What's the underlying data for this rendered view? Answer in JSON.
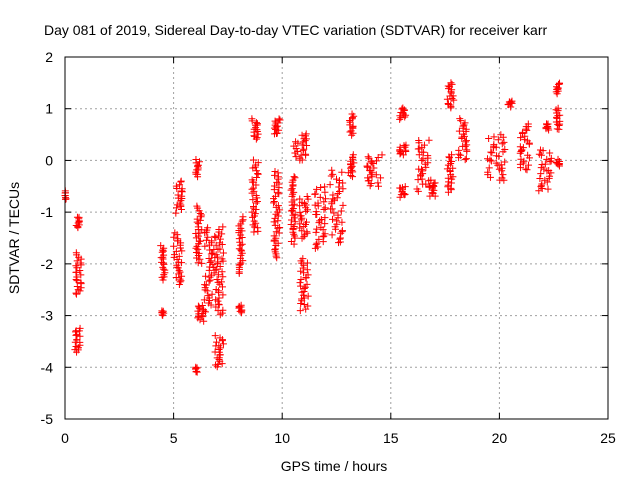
{
  "chart_data": {
    "type": "scatter",
    "title": "Day 081 of 2019, Sidereal Day-to-day VTEC variation (SDTVAR) for receiver karr",
    "xlabel": "GPS time / hours",
    "ylabel": "SDTVAR / TECUs",
    "xlim": [
      0,
      25
    ],
    "ylim": [
      -5,
      2
    ],
    "xticks": [
      0,
      5,
      10,
      15,
      20,
      25
    ],
    "yticks": [
      -5,
      -4,
      -3,
      -2,
      -1,
      0,
      1,
      2
    ],
    "grid": true,
    "marker": "+",
    "colors": {
      "series": "#ff0000",
      "grid": "#a0a0a0",
      "axis": "#000000"
    },
    "series": [
      {
        "name": "SDTVAR",
        "clusters": [
          {
            "x": [
              0.0,
              0.05
            ],
            "y": [
              -0.75,
              -0.6
            ]
          },
          {
            "x": [
              0.5,
              0.7
            ],
            "y": [
              -1.3,
              -1.1
            ]
          },
          {
            "x": [
              0.5,
              0.75
            ],
            "y": [
              -2.6,
              -1.8
            ]
          },
          {
            "x": [
              0.45,
              0.7
            ],
            "y": [
              -3.7,
              -3.25
            ]
          },
          {
            "x": [
              4.4,
              4.6
            ],
            "y": [
              -2.3,
              -1.65
            ]
          },
          {
            "x": [
              4.45,
              4.55
            ],
            "y": [
              -3.0,
              -2.9
            ]
          },
          {
            "x": [
              5.0,
              5.4
            ],
            "y": [
              -2.4,
              -1.4
            ]
          },
          {
            "x": [
              5.1,
              5.4
            ],
            "y": [
              -1.0,
              -0.4
            ]
          },
          {
            "x": [
              6.0,
              6.2
            ],
            "y": [
              -0.3,
              0.0
            ]
          },
          {
            "x": [
              6.0,
              6.3
            ],
            "y": [
              -2.0,
              -0.9
            ]
          },
          {
            "x": [
              6.1,
              6.5
            ],
            "y": [
              -3.1,
              -2.8
            ]
          },
          {
            "x": [
              6.0,
              6.1
            ],
            "y": [
              -4.1,
              -4.0
            ]
          },
          {
            "x": [
              6.4,
              6.9
            ],
            "y": [
              -2.8,
              -1.3
            ]
          },
          {
            "x": [
              6.9,
              7.3
            ],
            "y": [
              -3.0,
              -1.3
            ]
          },
          {
            "x": [
              6.9,
              7.3
            ],
            "y": [
              -4.0,
              -3.4
            ]
          },
          {
            "x": [
              8.0,
              8.2
            ],
            "y": [
              -2.95,
              -2.8
            ]
          },
          {
            "x": [
              8.0,
              8.2
            ],
            "y": [
              -2.2,
              -1.1
            ]
          },
          {
            "x": [
              8.6,
              8.9
            ],
            "y": [
              -1.4,
              0.0
            ]
          },
          {
            "x": [
              8.6,
              8.9
            ],
            "y": [
              0.4,
              0.8
            ]
          },
          {
            "x": [
              9.6,
              9.9
            ],
            "y": [
              -1.9,
              -0.2
            ]
          },
          {
            "x": [
              9.6,
              9.9
            ],
            "y": [
              0.5,
              0.8
            ]
          },
          {
            "x": [
              10.5,
              11.2
            ],
            "y": [
              0.0,
              0.5
            ]
          },
          {
            "x": [
              10.4,
              10.6
            ],
            "y": [
              -1.6,
              -0.3
            ]
          },
          {
            "x": [
              10.8,
              11.2
            ],
            "y": [
              -2.9,
              -1.9
            ]
          },
          {
            "x": [
              10.8,
              11.2
            ],
            "y": [
              -1.5,
              -0.7
            ]
          },
          {
            "x": [
              11.5,
              12.0
            ],
            "y": [
              -1.7,
              -0.5
            ]
          },
          {
            "x": [
              12.2,
              12.8
            ],
            "y": [
              -1.6,
              -0.2
            ]
          },
          {
            "x": [
              13.0,
              13.3
            ],
            "y": [
              -0.3,
              0.1
            ]
          },
          {
            "x": [
              13.1,
              13.3
            ],
            "y": [
              0.5,
              0.9
            ]
          },
          {
            "x": [
              13.9,
              14.6
            ],
            "y": [
              -0.5,
              0.1
            ]
          },
          {
            "x": [
              15.4,
              15.7
            ],
            "y": [
              0.1,
              0.3
            ]
          },
          {
            "x": [
              15.4,
              15.7
            ],
            "y": [
              0.8,
              1.0
            ]
          },
          {
            "x": [
              15.4,
              15.7
            ],
            "y": [
              -0.7,
              -0.5
            ]
          },
          {
            "x": [
              16.2,
              16.8
            ],
            "y": [
              -0.6,
              0.4
            ]
          },
          {
            "x": [
              16.8,
              17.1
            ],
            "y": [
              -0.7,
              -0.4
            ]
          },
          {
            "x": [
              17.6,
              17.9
            ],
            "y": [
              1.0,
              1.5
            ]
          },
          {
            "x": [
              17.6,
              17.9
            ],
            "y": [
              -0.6,
              0.1
            ]
          },
          {
            "x": [
              18.1,
              18.5
            ],
            "y": [
              0.0,
              0.8
            ]
          },
          {
            "x": [
              19.4,
              20.3
            ],
            "y": [
              -0.4,
              0.5
            ]
          },
          {
            "x": [
              20.4,
              20.6
            ],
            "y": [
              1.05,
              1.15
            ]
          },
          {
            "x": [
              20.9,
              21.4
            ],
            "y": [
              -0.2,
              0.7
            ]
          },
          {
            "x": [
              21.8,
              22.4
            ],
            "y": [
              -0.6,
              0.2
            ]
          },
          {
            "x": [
              22.1,
              22.3
            ],
            "y": [
              0.6,
              0.7
            ]
          },
          {
            "x": [
              22.6,
              22.8
            ],
            "y": [
              0.6,
              1.0
            ]
          },
          {
            "x": [
              22.6,
              22.8
            ],
            "y": [
              1.3,
              1.5
            ]
          },
          {
            "x": [
              22.6,
              22.8
            ],
            "y": [
              -0.1,
              0.0
            ]
          }
        ]
      }
    ]
  }
}
